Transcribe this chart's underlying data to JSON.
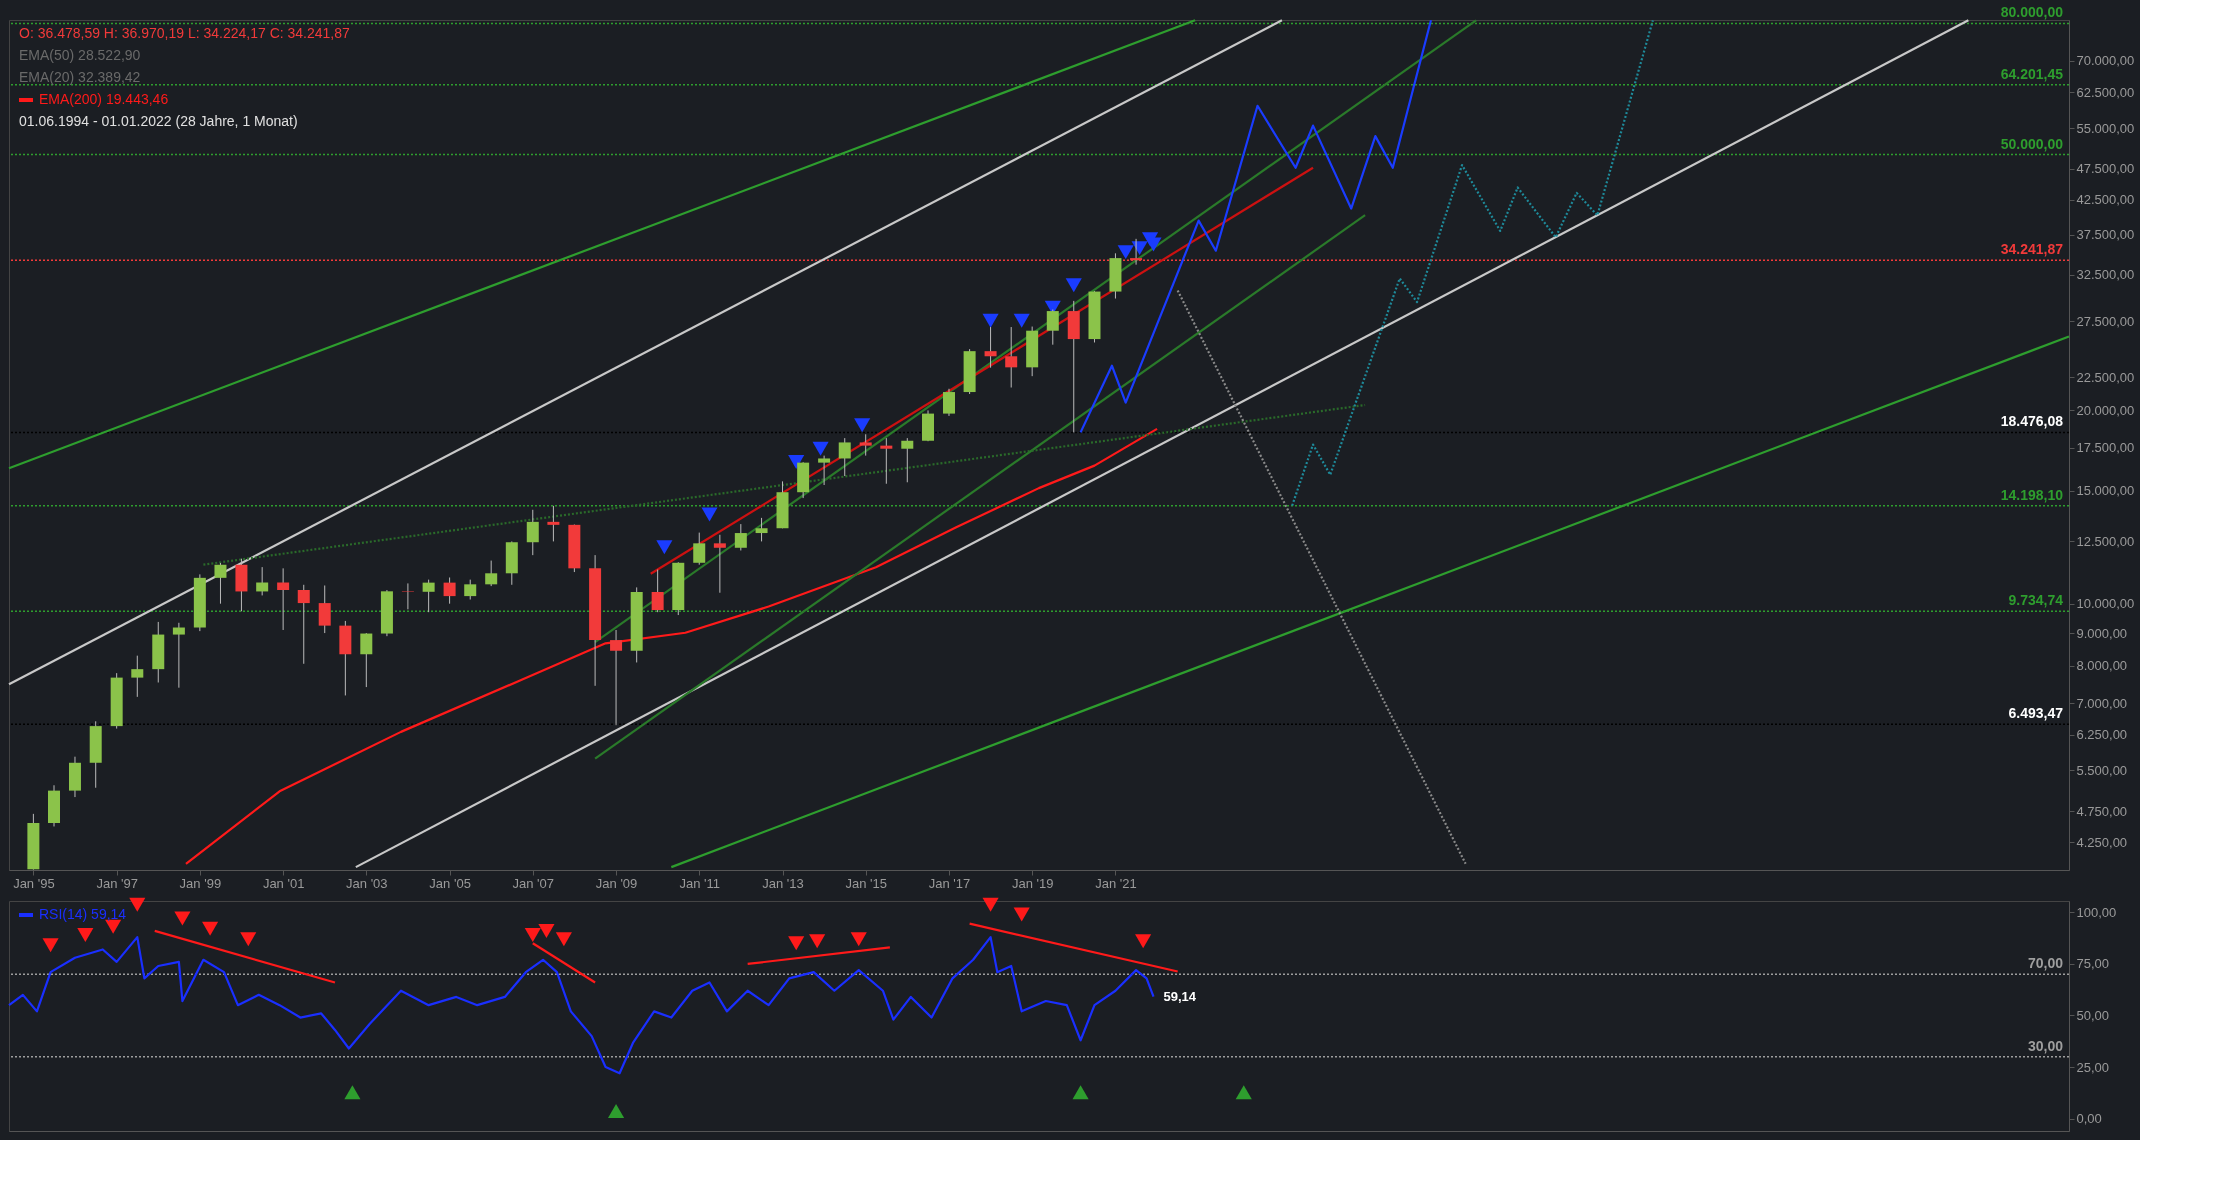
{
  "chart_data": [
    {
      "type": "candlestick",
      "title": "O: 36.478,59  H: 36.970,19  L: 34.224,17  C: 34.241,87",
      "subtitle": "01.06.1994 - 01.01.2022   (28 Jahre, 1 Monat)",
      "annotations": [
        "EMA(50)  28.522,90",
        "EMA(20)  32.389,42"
      ],
      "x": [
        "1995-01",
        "1995-07",
        "1996-01",
        "1996-07",
        "1997-01",
        "1997-07",
        "1998-01",
        "1998-07",
        "1999-01",
        "1999-07",
        "2000-01",
        "2000-07",
        "2001-01",
        "2001-07",
        "2002-01",
        "2002-07",
        "2003-01",
        "2003-07",
        "2004-01",
        "2004-07",
        "2005-01",
        "2005-07",
        "2006-01",
        "2006-07",
        "2007-01",
        "2007-07",
        "2008-01",
        "2008-07",
        "2009-01",
        "2009-07",
        "2010-01",
        "2010-07",
        "2011-01",
        "2011-07",
        "2012-01",
        "2012-07",
        "2013-01",
        "2013-07",
        "2014-01",
        "2014-07",
        "2015-01",
        "2015-07",
        "2016-01",
        "2016-07",
        "2017-01",
        "2017-07",
        "2018-01",
        "2018-07",
        "2019-01",
        "2019-07",
        "2020-01",
        "2020-07",
        "2021-01",
        "2021-07"
      ],
      "ohlc": [
        [
          3860,
          4708,
          3855,
          4556
        ],
        [
          4556,
          5216,
          4500,
          5117
        ],
        [
          5117,
          5779,
          5000,
          5654
        ],
        [
          5654,
          6560,
          5170,
          6448
        ],
        [
          6448,
          7796,
          6391,
          7672
        ],
        [
          7672,
          8300,
          7161,
          7908
        ],
        [
          7908,
          9367,
          7539,
          8952
        ],
        [
          8952,
          9338,
          7400,
          9181
        ],
        [
          9181,
          11107,
          9063,
          10970
        ],
        [
          10970,
          11570,
          10000,
          11497
        ],
        [
          11497,
          11750,
          9731,
          10448
        ],
        [
          10448,
          11400,
          10300,
          10788
        ],
        [
          10788,
          11350,
          9100,
          10502
        ],
        [
          10502,
          10700,
          8062,
          10021
        ],
        [
          10021,
          10673,
          9000,
          9243
        ],
        [
          9243,
          9400,
          7197,
          8342
        ],
        [
          8342,
          9000,
          7416,
          8985
        ],
        [
          8985,
          10500,
          8900,
          10453
        ],
        [
          10453,
          10753,
          9800,
          10435
        ],
        [
          10435,
          10900,
          9700,
          10783
        ],
        [
          10783,
          10984,
          10000,
          10275
        ],
        [
          10275,
          10900,
          10150,
          10718
        ],
        [
          10718,
          11670,
          10650,
          11150
        ],
        [
          11150,
          12500,
          10700,
          12463
        ],
        [
          12463,
          14000,
          11900,
          13408
        ],
        [
          13408,
          14198,
          12500,
          13265
        ],
        [
          13265,
          13280,
          11200,
          11350
        ],
        [
          11350,
          11900,
          7450,
          8776
        ],
        [
          8776,
          9100,
          6470,
          8447
        ],
        [
          8447,
          10600,
          8100,
          10428
        ],
        [
          10428,
          11300,
          9700,
          9774
        ],
        [
          9774,
          11600,
          9600,
          11578
        ],
        [
          11578,
          12900,
          11500,
          12414
        ],
        [
          12414,
          12800,
          10400,
          12218
        ],
        [
          12218,
          13300,
          12100,
          12880
        ],
        [
          12880,
          13600,
          12500,
          13104
        ],
        [
          13104,
          15500,
          13100,
          14910
        ],
        [
          14910,
          16600,
          14600,
          16577
        ],
        [
          16577,
          17000,
          15300,
          16827
        ],
        [
          16827,
          18100,
          15800,
          17823
        ],
        [
          17823,
          18350,
          17000,
          17620
        ],
        [
          17620,
          18100,
          15370,
          17425
        ],
        [
          17425,
          18100,
          15450,
          17930
        ],
        [
          17930,
          19990,
          17900,
          19763
        ],
        [
          19763,
          21600,
          19600,
          21350
        ],
        [
          21350,
          24900,
          21200,
          24719
        ],
        [
          24719,
          26950,
          23300,
          24271
        ],
        [
          24271,
          26950,
          21700,
          23327
        ],
        [
          23327,
          27000,
          22600,
          26600
        ],
        [
          26600,
          28700,
          25300,
          28538
        ],
        [
          28538,
          29600,
          18476,
          25813
        ],
        [
          25813,
          30650,
          25500,
          30606
        ],
        [
          30606,
          35100,
          29850,
          34503
        ],
        [
          34503,
          36970,
          33700,
          34241
        ]
      ],
      "colors": [
        "#8bc34a",
        "#8bc34a",
        "#8bc34a",
        "#8bc34a",
        "#8bc34a",
        "#8bc34a",
        "#8bc34a",
        "#8bc34a",
        "#8bc34a",
        "#8bc34a",
        "#f23a3a",
        "#8bc34a",
        "#f23a3a",
        "#f23a3a",
        "#f23a3a",
        "#f23a3a",
        "#8bc34a",
        "#8bc34a",
        "#f23a3a",
        "#8bc34a",
        "#f23a3a",
        "#8bc34a",
        "#8bc34a",
        "#8bc34a",
        "#8bc34a",
        "#f23a3a",
        "#f23a3a",
        "#f23a3a",
        "#f23a3a",
        "#8bc34a",
        "#f23a3a",
        "#8bc34a",
        "#8bc34a",
        "#f23a3a",
        "#8bc34a",
        "#8bc34a",
        "#8bc34a",
        "#8bc34a",
        "#8bc34a",
        "#8bc34a",
        "#f23a3a",
        "#f23a3a",
        "#8bc34a",
        "#8bc34a",
        "#8bc34a",
        "#8bc34a",
        "#f23a3a",
        "#f23a3a",
        "#8bc34a",
        "#8bc34a",
        "#f23a3a",
        "#8bc34a",
        "#8bc34a",
        "#f23a3a"
      ],
      "series": [
        {
          "name": "EMA(200)  19.443,46",
          "type": "line",
          "color": "#ff1a1a",
          "x": [
            "1998-09",
            "2000-12",
            "2003-11",
            "2006-10",
            "2008-10",
            "2010-09",
            "2012-09",
            "2015-04",
            "2017-03",
            "2019-03",
            "2020-07",
            "2022-01"
          ],
          "values": [
            3937,
            5105,
            6316,
            7620,
            8675,
            9010,
            9897,
            11397,
            13136,
            15130,
            16400,
            18710
          ]
        },
        {
          "type": "line",
          "color": "#2e9e2e",
          "x": [
            "1994-06",
            "2022-12"
          ],
          "values": [
            16250,
            80900
          ]
        },
        {
          "type": "line",
          "color": "#2e9e2e",
          "x": [
            "2010-05",
            "2043-12"
          ],
          "values": [
            3890,
            26060
          ]
        },
        {
          "type": "line",
          "color": "#c8c8c8",
          "x": [
            "1994-06",
            "2025-01"
          ],
          "values": [
            7490,
            80900
          ]
        },
        {
          "type": "line",
          "color": "#c8c8c8",
          "x": [
            "2002-10",
            "2041-07"
          ],
          "values": [
            3890,
            80900
          ]
        },
        {
          "type": "line",
          "color": "#2a7a2a",
          "x": [
            "2008-07",
            "2029-09"
          ],
          "values": [
            8710,
            80900
          ]
        },
        {
          "type": "line",
          "color": "#2a7a2a",
          "x": [
            "2008-07",
            "2027-01"
          ],
          "values": [
            5740,
            40240
          ]
        },
        {
          "type": "line",
          "color": "#cc1111",
          "x": [
            "2009-11",
            "2025-10"
          ],
          "values": [
            11130,
            47700
          ]
        },
        {
          "type": "line",
          "color": "#2a6a2a",
          "line_style": "dotted",
          "x": [
            "1999-02",
            "2027-01"
          ],
          "values": [
            11500,
            20380
          ]
        },
        {
          "type": "line",
          "color": "#1a3cff",
          "x": [
            "2020-03",
            "2020-12",
            "2021-04",
            "2023-01",
            "2023-06",
            "2024-06",
            "2025-05",
            "2025-10",
            "2026-09",
            "2027-04",
            "2027-09",
            "2028-08"
          ],
          "values": [
            18476,
            23460,
            20560,
            39470,
            35430,
            59560,
            47700,
            55480,
            41210,
            53420,
            47700,
            80900
          ]
        },
        {
          "type": "line",
          "color": "#1e8a9a",
          "line_style": "dotted",
          "x": [
            "2025-04",
            "2025-10",
            "2026-03",
            "2027-11",
            "2028-04",
            "2029-05",
            "2030-04",
            "2030-09",
            "2031-08",
            "2032-02",
            "2032-08",
            "2033-12"
          ],
          "values": [
            14210,
            17690,
            15870,
            32080,
            29470,
            48160,
            38030,
            44440,
            37170,
            43590,
            40220,
            80900
          ]
        },
        {
          "type": "line",
          "color": "#8a8a8a",
          "line_style": "dotted",
          "x": [
            "2022-07",
            "2029-06"
          ],
          "values": [
            30730,
            3937
          ]
        },
        {
          "type": "scatter",
          "marker": "triangle-down",
          "color": "#1a3cff",
          "x": [
            "2010-03",
            "2011-04",
            "2013-05",
            "2013-12",
            "2014-12",
            "2018-01",
            "2018-10",
            "2019-07",
            "2020-01",
            "2021-04",
            "2021-08",
            "2021-11",
            "2021-12"
          ],
          "values": [
            12240,
            13770,
            16620,
            17420,
            18960,
            27570,
            27570,
            28890,
            31300,
            35250,
            35760,
            36930,
            36240
          ]
        }
      ],
      "ref_lines": [
        {
          "axis": "y",
          "value": 80000,
          "label": "80.000,00",
          "color": "#2e9e2e",
          "line_style": "dotted"
        },
        {
          "axis": "y",
          "value": 64201.45,
          "label": "64.201,45",
          "color": "#2e9e2e",
          "line_style": "dotted"
        },
        {
          "axis": "y",
          "value": 50000,
          "label": "50.000,00",
          "color": "#2e9e2e",
          "line_style": "dotted"
        },
        {
          "axis": "y",
          "value": 34241.87,
          "label": "34.241,87",
          "color": "#f23a3a",
          "line_style": "dotted"
        },
        {
          "axis": "y",
          "value": 18476.08,
          "label": "18.476,08",
          "color": "#000000",
          "line_style": "dotted"
        },
        {
          "axis": "y",
          "value": 14198.1,
          "label": "14.198,10",
          "color": "#2e9e2e",
          "line_style": "dotted"
        },
        {
          "axis": "y",
          "value": 9734.74,
          "label": "9.734,74",
          "color": "#2e9e2e",
          "line_style": "dotted"
        },
        {
          "axis": "y",
          "value": 6493.47,
          "label": "6.493,47",
          "color": "#000000",
          "line_style": "dotted"
        }
      ],
      "xlim": [
        "1994-06",
        "2043-12"
      ],
      "xticks": [
        {
          "value": "1995-01",
          "label": "Jan '95"
        },
        {
          "value": "1997-01",
          "label": "Jan '97"
        },
        {
          "value": "1999-01",
          "label": "Jan '99"
        },
        {
          "value": "2001-01",
          "label": "Jan '01"
        },
        {
          "value": "2003-01",
          "label": "Jan '03"
        },
        {
          "value": "2005-01",
          "label": "Jan '05"
        },
        {
          "value": "2007-01",
          "label": "Jan '07"
        },
        {
          "value": "2009-01",
          "label": "Jan '09"
        },
        {
          "value": "2011-01",
          "label": "Jan '11"
        },
        {
          "value": "2013-01",
          "label": "Jan '13"
        },
        {
          "value": "2015-01",
          "label": "Jan '15"
        },
        {
          "value": "2017-01",
          "label": "Jan '17"
        },
        {
          "value": "2019-01",
          "label": "Jan '19"
        },
        {
          "value": "2021-01",
          "label": "Jan '21"
        }
      ],
      "ylim": [
        3850,
        81000
      ],
      "log": true,
      "yticks": [
        {
          "value": 4250,
          "label": "4.250,00"
        },
        {
          "value": 4750,
          "label": "4.750,00"
        },
        {
          "value": 5500,
          "label": "5.500,00"
        },
        {
          "value": 6250,
          "label": "6.250,00"
        },
        {
          "value": 7000,
          "label": "7.000,00"
        },
        {
          "value": 8000,
          "label": "8.000,00"
        },
        {
          "value": 9000,
          "label": "9.000,00"
        },
        {
          "value": 10000,
          "label": "10.000,00"
        },
        {
          "value": 12500,
          "label": "12.500,00"
        },
        {
          "value": 15000,
          "label": "15.000,00"
        },
        {
          "value": 17500,
          "label": "17.500,00"
        },
        {
          "value": 20000,
          "label": "20.000,00"
        },
        {
          "value": 22500,
          "label": "22.500,00"
        },
        {
          "value": 27500,
          "label": "27.500,00"
        },
        {
          "value": 32500,
          "label": "32.500,00"
        },
        {
          "value": 37500,
          "label": "37.500,00"
        },
        {
          "value": 42500,
          "label": "42.500,00"
        },
        {
          "value": 47500,
          "label": "47.500,00"
        },
        {
          "value": 55000,
          "label": "55.000,00"
        },
        {
          "value": 62500,
          "label": "62.500,00"
        },
        {
          "value": 70000,
          "label": "70.000,00"
        }
      ],
      "legend": "top left"
    },
    {
      "type": "line",
      "series": [
        {
          "name": "RSI(14)  59,14",
          "type": "line",
          "color": "#1a2fff",
          "x": [
            "1994-06",
            "1994-10",
            "1995-02",
            "1995-06",
            "1996-01",
            "1996-09",
            "1997-01",
            "1997-07",
            "1997-09",
            "1998-01",
            "1998-07",
            "1998-08",
            "1999-02",
            "1999-08",
            "1999-12",
            "2000-06",
            "2000-12",
            "2001-06",
            "2001-12",
            "2002-04",
            "2002-08",
            "2003-02",
            "2003-11",
            "2004-07",
            "2005-03",
            "2005-09",
            "2006-05",
            "2006-11",
            "2007-04",
            "2007-08",
            "2007-12",
            "2008-06",
            "2008-10",
            "2009-02",
            "2009-06",
            "2009-12",
            "2010-05",
            "2010-11",
            "2011-04",
            "2011-09",
            "2012-03",
            "2012-09",
            "2013-03",
            "2013-10",
            "2014-04",
            "2014-11",
            "2015-06",
            "2015-09",
            "2016-02",
            "2016-08",
            "2017-02",
            "2017-08",
            "2018-01",
            "2018-03",
            "2018-07",
            "2018-10",
            "2019-05",
            "2019-11",
            "2020-03",
            "2020-07",
            "2021-01",
            "2021-07",
            "2021-10",
            "2021-12"
          ],
          "values": [
            55,
            60,
            52,
            71,
            78,
            82,
            76,
            88,
            68,
            74,
            76,
            57,
            77,
            71,
            55,
            60,
            55,
            49,
            51,
            43,
            34,
            46,
            62,
            55,
            59,
            55,
            59,
            71,
            77,
            71,
            52,
            40,
            25,
            22,
            37,
            52,
            49,
            62,
            66,
            52,
            62,
            55,
            68,
            71,
            62,
            72,
            62,
            48,
            59,
            49,
            68,
            77,
            88,
            71,
            74,
            52,
            57,
            55,
            38,
            55,
            62,
            72,
            68,
            59.14
          ]
        },
        {
          "type": "line",
          "color": "#ff1a1a",
          "x": [
            "1997-12",
            "2002-04"
          ],
          "values": [
            91,
            66
          ]
        },
        {
          "type": "line",
          "color": "#ff1a1a",
          "x": [
            "2007-01",
            "2008-07"
          ],
          "values": [
            85,
            66
          ]
        },
        {
          "type": "line",
          "color": "#ff1a1a",
          "x": [
            "2012-03",
            "2015-08"
          ],
          "values": [
            75,
            83
          ]
        },
        {
          "type": "line",
          "color": "#ff1a1a",
          "x": [
            "2017-07",
            "2022-07"
          ],
          "values": [
            94.5,
            71.3
          ]
        },
        {
          "type": "scatter",
          "marker": "triangle-down",
          "color": "#ff1a1a",
          "x": [
            "1995-06",
            "1996-04",
            "1996-12",
            "1997-07",
            "1998-08",
            "1999-04",
            "2000-03",
            "2007-01",
            "2007-05",
            "2007-10",
            "2013-05",
            "2013-11",
            "2014-11",
            "2018-01",
            "2018-10",
            "2021-09"
          ],
          "values": [
            84,
            89,
            93,
            103.7,
            97,
            92,
            87,
            89,
            91,
            87,
            85,
            86,
            87,
            103.7,
            99,
            86
          ]
        },
        {
          "type": "scatter",
          "marker": "triangle",
          "color": "#2e9e2e",
          "x": [
            "2002-09",
            "2009-01",
            "2020-03",
            "2024-02"
          ],
          "values": [
            12.8,
            3.7,
            12.8,
            12.8
          ]
        }
      ],
      "ref_lines": [
        {
          "axis": "y",
          "value": 70,
          "label": "70,00",
          "color": "#9e9e9e",
          "line_style": "dotted"
        },
        {
          "axis": "y",
          "value": 30,
          "label": "30,00",
          "color": "#9e9e9e",
          "line_style": "dotted"
        }
      ],
      "annotations": [
        {
          "text": "59,14",
          "x": "2021-12",
          "y": 59.14
        }
      ],
      "xlim": [
        "1994-06",
        "2043-12"
      ],
      "ylim": [
        -6,
        105.5
      ],
      "yticks": [
        {
          "value": 0,
          "label": "0,00"
        },
        {
          "value": 25,
          "label": "25,00"
        },
        {
          "value": 50,
          "label": "50,00"
        },
        {
          "value": 75,
          "label": "75,00"
        },
        {
          "value": 100,
          "label": "100,00"
        }
      ],
      "tick_labels": "y",
      "legend": "top left"
    }
  ]
}
